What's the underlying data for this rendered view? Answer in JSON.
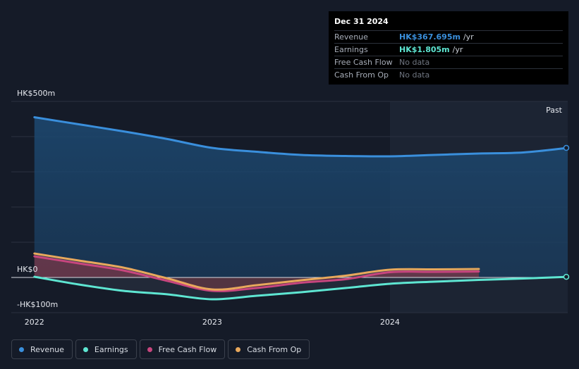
{
  "tooltip": {
    "date": "Dec 31 2024",
    "rows": [
      {
        "label": "Revenue",
        "value": "HK$367.695m",
        "unit": "/yr",
        "color": "#3a8fdc"
      },
      {
        "label": "Earnings",
        "value": "HK$1.805m",
        "unit": "/yr",
        "color": "#5ee6d2"
      },
      {
        "label": "Free Cash Flow",
        "value": "No data",
        "unit": "",
        "color": "#6f7580"
      },
      {
        "label": "Cash From Op",
        "value": "No data",
        "unit": "",
        "color": "#6f7580"
      }
    ]
  },
  "chart_data": {
    "type": "area",
    "y_tick_labels": [
      "HK$500m",
      "HK$0",
      "-HK$100m"
    ],
    "ylim": [
      -100,
      500
    ],
    "x_tick_labels": [
      "2022",
      "2023",
      "2024"
    ],
    "x_tick_values": [
      2022.0,
      2023.0,
      2024.0
    ],
    "xlim": [
      2021.87,
      2025.0
    ],
    "past_label": "Past",
    "past_start": 2024.0,
    "series": [
      {
        "name": "Revenue",
        "color": "#3a8fdc",
        "x": [
          2022.0,
          2022.25,
          2022.5,
          2022.75,
          2023.0,
          2023.25,
          2023.5,
          2023.75,
          2024.0,
          2024.25,
          2024.5,
          2024.75,
          2025.0
        ],
        "y": [
          455,
          435,
          415,
          393,
          368,
          357,
          348,
          345,
          344,
          348,
          352,
          355,
          368
        ]
      },
      {
        "name": "Earnings",
        "color": "#5ee6d2",
        "x": [
          2022.0,
          2022.25,
          2022.5,
          2022.75,
          2023.0,
          2023.25,
          2023.5,
          2023.75,
          2024.0,
          2024.25,
          2024.5,
          2024.75,
          2025.0
        ],
        "y": [
          2,
          -20,
          -38,
          -48,
          -62,
          -52,
          -42,
          -30,
          -18,
          -12,
          -7,
          -3,
          1.8
        ]
      },
      {
        "name": "Free Cash Flow",
        "color": "#c8467e",
        "x": [
          2022.0,
          2022.25,
          2022.5,
          2022.75,
          2023.0,
          2023.25,
          2023.5,
          2023.75,
          2024.0,
          2024.25,
          2024.5
        ],
        "y": [
          60,
          40,
          20,
          -10,
          -38,
          -30,
          -15,
          -5,
          15,
          16,
          17
        ]
      },
      {
        "name": "Cash From Op",
        "color": "#e8a85c",
        "x": [
          2022.0,
          2022.25,
          2022.5,
          2022.75,
          2023.0,
          2023.25,
          2023.5,
          2023.75,
          2024.0,
          2024.25,
          2024.5
        ],
        "y": [
          68,
          48,
          28,
          -3,
          -34,
          -22,
          -8,
          5,
          22,
          23,
          24
        ]
      }
    ]
  }
}
